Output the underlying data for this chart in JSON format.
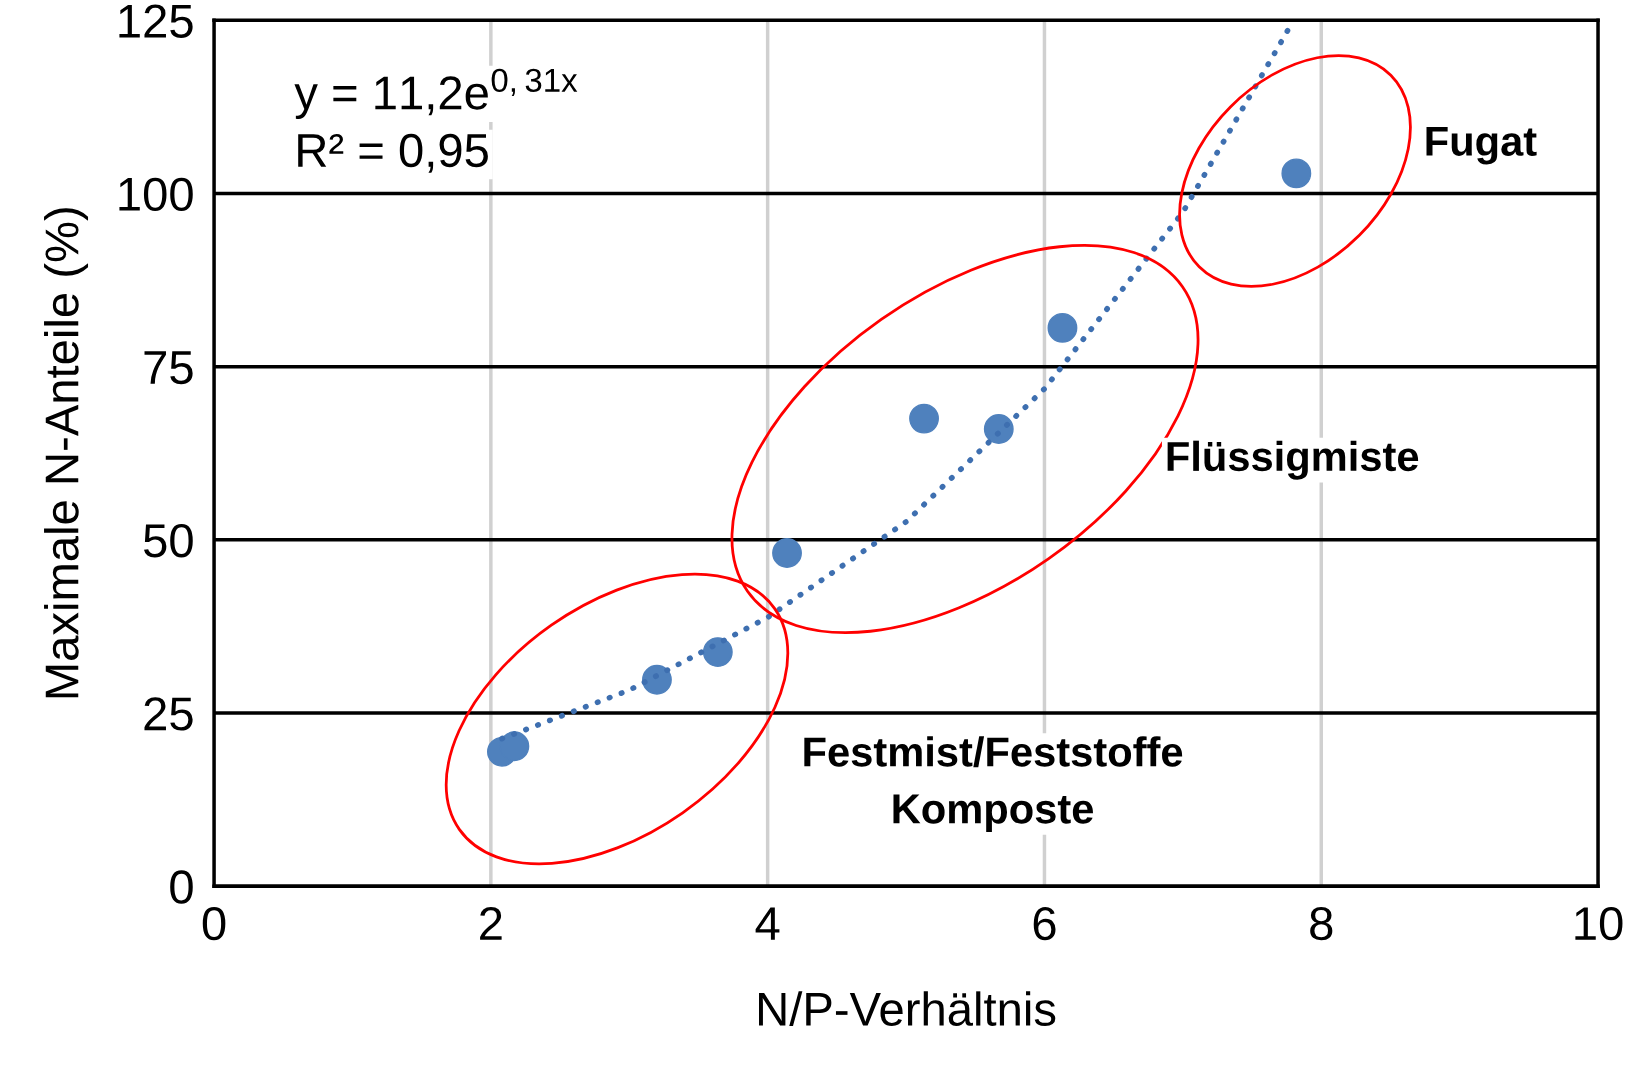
{
  "chart_data": {
    "type": "scatter",
    "xlabel": "N/P-Verhältnis",
    "ylabel": "Maximale N-Anteile (%)",
    "xlim": [
      0,
      10
    ],
    "xticks": [
      0,
      2,
      4,
      6,
      8,
      10
    ],
    "ylim": [
      0,
      125
    ],
    "yticks": [
      0,
      25,
      50,
      75,
      100,
      125
    ],
    "grid": true,
    "marker": "circle",
    "series": [
      {
        "color": "#4f81bd",
        "x": [
          2.08,
          2.17,
          3.2,
          3.64,
          4.14,
          5.13,
          5.67,
          6.13,
          7.82
        ],
        "values": [
          19.4,
          20.2,
          29.8,
          33.8,
          48.1,
          67.5,
          66.0,
          80.6,
          102.9
        ]
      },
      {
        "type": "line",
        "color": "#3e6fb0",
        "marker": "none",
        "line_style": "dotted",
        "x": [
          2.08,
          3,
          4,
          5,
          6,
          7,
          7.8
        ],
        "values": [
          21.3,
          28.3,
          38.8,
          52.6,
          71.8,
          97.3,
          125
        ]
      }
    ],
    "annotations": [
      "y = 11,2e$^{0,31x}$",
      "R² = 0,95",
      "Fugat",
      "Flüssigmiste",
      "Festmist/Feststoffe\nKomposte"
    ]
  }
}
